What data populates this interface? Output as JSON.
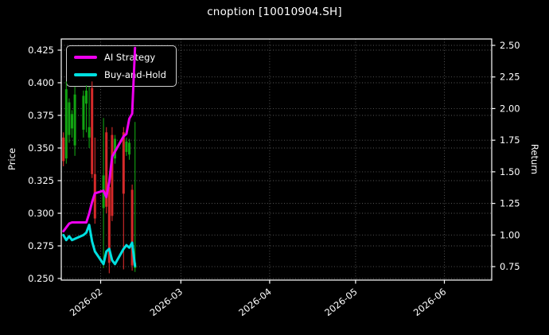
{
  "chart_data": {
    "type": "candlestick",
    "title": "cnoption [10010904.SH]",
    "xlabel": "",
    "grid": "dotted",
    "legend_position": "upper-left",
    "price_axis": {
      "label": "Price",
      "side": "left",
      "ticks": [
        "0.425",
        "0.400",
        "0.375",
        "0.350",
        "0.325",
        "0.300",
        "0.275",
        "0.250"
      ],
      "range": [
        0.2476,
        0.4336
      ]
    },
    "return_axis": {
      "label": "Return",
      "side": "right",
      "ticks": [
        "2.50",
        "2.25",
        "2.00",
        "1.75",
        "1.50",
        "1.25",
        "1.00",
        "0.75"
      ],
      "range": [
        0.643,
        2.55
      ]
    },
    "x_ticks": [
      "2026-02",
      "2026-03",
      "2026-04",
      "2026-05",
      "2026-06"
    ],
    "colors": {
      "background": "#000000",
      "text": "#ffffff",
      "grid": "#b3b3b3",
      "up": "#12a312",
      "down": "#d62a2a",
      "ai_strategy": "#ee00ee",
      "buy_and_hold": "#00e0e0"
    },
    "candles": [
      {
        "date": "2026-01-19",
        "o": 0.358,
        "h": 0.362,
        "l": 0.336,
        "c": 0.34
      },
      {
        "date": "2026-01-20",
        "o": 0.342,
        "h": 0.401,
        "l": 0.338,
        "c": 0.395
      },
      {
        "date": "2026-01-21",
        "o": 0.36,
        "h": 0.388,
        "l": 0.354,
        "c": 0.385
      },
      {
        "date": "2026-01-22",
        "o": 0.365,
        "h": 0.379,
        "l": 0.358,
        "c": 0.376
      },
      {
        "date": "2026-01-23",
        "o": 0.352,
        "h": 0.397,
        "l": 0.344,
        "c": 0.391
      },
      {
        "date": "2026-01-26",
        "o": 0.364,
        "h": 0.394,
        "l": 0.358,
        "c": 0.39
      },
      {
        "date": "2026-01-27",
        "o": 0.384,
        "h": 0.398,
        "l": 0.362,
        "c": 0.394
      },
      {
        "date": "2026-01-28",
        "o": 0.358,
        "h": 0.397,
        "l": 0.35,
        "c": 0.366
      },
      {
        "date": "2026-01-29",
        "o": 0.396,
        "h": 0.401,
        "l": 0.327,
        "c": 0.33
      },
      {
        "date": "2026-01-30",
        "o": 0.33,
        "h": 0.358,
        "l": 0.292,
        "c": 0.296
      },
      {
        "date": "2026-02-02",
        "o": 0.304,
        "h": 0.373,
        "l": 0.258,
        "c": 0.329
      },
      {
        "date": "2026-02-03",
        "o": 0.362,
        "h": 0.366,
        "l": 0.3,
        "c": 0.305
      },
      {
        "date": "2026-02-04",
        "o": 0.32,
        "h": 0.325,
        "l": 0.254,
        "c": 0.262
      },
      {
        "date": "2026-02-05",
        "o": 0.36,
        "h": 0.366,
        "l": 0.294,
        "c": 0.298
      },
      {
        "date": "2026-02-06",
        "o": 0.342,
        "h": 0.36,
        "l": 0.338,
        "c": 0.357
      },
      {
        "date": "2026-02-09",
        "o": 0.362,
        "h": 0.366,
        "l": 0.257,
        "c": 0.315
      },
      {
        "date": "2026-02-10",
        "o": 0.347,
        "h": 0.358,
        "l": 0.344,
        "c": 0.355
      },
      {
        "date": "2026-02-11",
        "o": 0.345,
        "h": 0.357,
        "l": 0.341,
        "c": 0.354
      },
      {
        "date": "2026-02-12",
        "o": 0.318,
        "h": 0.322,
        "l": 0.256,
        "c": 0.26
      },
      {
        "date": "2026-02-13",
        "o": 0.258,
        "h": 0.37,
        "l": 0.255,
        "c": 0.262
      }
    ],
    "series": [
      {
        "name": "AI Strategy",
        "color": "#ee00ee",
        "axis": "return",
        "points": [
          [
            "2026-01-19",
            1.03
          ],
          [
            "2026-01-20",
            1.06
          ],
          [
            "2026-01-21",
            1.09
          ],
          [
            "2026-01-22",
            1.1
          ],
          [
            "2026-01-23",
            1.1
          ],
          [
            "2026-01-26",
            1.1
          ],
          [
            "2026-01-27",
            1.1
          ],
          [
            "2026-01-28",
            1.17
          ],
          [
            "2026-01-29",
            1.26
          ],
          [
            "2026-01-30",
            1.33
          ],
          [
            "2026-02-02",
            1.35
          ],
          [
            "2026-02-03",
            1.3
          ],
          [
            "2026-02-04",
            1.42
          ],
          [
            "2026-02-05",
            1.62
          ],
          [
            "2026-02-06",
            1.66
          ],
          [
            "2026-02-09",
            1.78
          ],
          [
            "2026-02-10",
            1.8
          ],
          [
            "2026-02-11",
            1.92
          ],
          [
            "2026-02-12",
            1.96
          ],
          [
            "2026-02-13",
            2.48
          ]
        ]
      },
      {
        "name": "Buy-and-Hold",
        "color": "#00e0e0",
        "axis": "return",
        "points": [
          [
            "2026-01-19",
            1.0
          ],
          [
            "2026-01-20",
            0.96
          ],
          [
            "2026-01-21",
            0.99
          ],
          [
            "2026-01-22",
            0.96
          ],
          [
            "2026-01-23",
            0.97
          ],
          [
            "2026-01-26",
            1.0
          ],
          [
            "2026-01-27",
            1.02
          ],
          [
            "2026-01-28",
            1.08
          ],
          [
            "2026-01-29",
            0.95
          ],
          [
            "2026-01-30",
            0.87
          ],
          [
            "2026-02-02",
            0.77
          ],
          [
            "2026-02-03",
            0.87
          ],
          [
            "2026-02-04",
            0.89
          ],
          [
            "2026-02-05",
            0.8
          ],
          [
            "2026-02-06",
            0.77
          ],
          [
            "2026-02-09",
            0.89
          ],
          [
            "2026-02-10",
            0.92
          ],
          [
            "2026-02-11",
            0.9
          ],
          [
            "2026-02-12",
            0.94
          ],
          [
            "2026-02-13",
            0.755
          ]
        ]
      }
    ]
  }
}
